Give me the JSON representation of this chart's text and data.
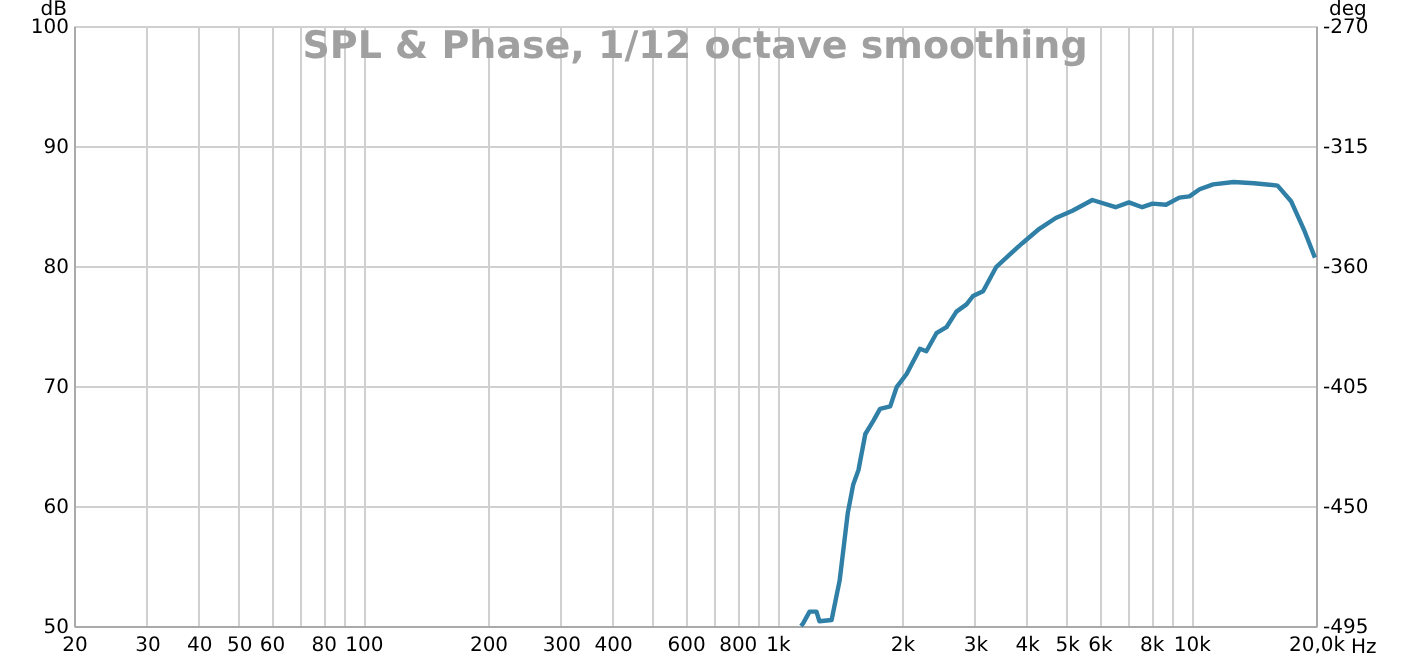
{
  "chart_data": {
    "type": "line",
    "title": "SPL & Phase, 1/12 octave smoothing",
    "xlabel": "Hz",
    "ylabel": "dB",
    "y2label": "deg",
    "log": "x",
    "grid": true,
    "marker": "none",
    "line_style": "solid",
    "xlim": [
      20,
      20000
    ],
    "xticks": [
      20,
      30,
      40,
      50,
      60,
      {
        "value": 70,
        "label": null
      },
      80,
      {
        "value": 90,
        "label": null
      },
      100,
      200,
      300,
      400,
      {
        "value": 500,
        "label": null
      },
      600,
      {
        "value": 700,
        "label": null
      },
      800,
      {
        "value": 900,
        "label": null
      },
      {
        "value": 1000,
        "label": "1k"
      },
      {
        "value": 2000,
        "label": "2k"
      },
      {
        "value": 3000,
        "label": "3k"
      },
      {
        "value": 4000,
        "label": "4k"
      },
      {
        "value": 5000,
        "label": "5k"
      },
      {
        "value": 6000,
        "label": "6k"
      },
      {
        "value": 7000,
        "label": null
      },
      {
        "value": 8000,
        "label": "8k"
      },
      {
        "value": 9000,
        "label": null
      },
      {
        "value": 10000,
        "label": "10k"
      },
      {
        "value": 20000,
        "label": "20,0k"
      }
    ],
    "ylim": [
      50,
      100
    ],
    "yticks": [
      50,
      60,
      70,
      80,
      90,
      100
    ],
    "y2lim": [
      -495,
      -270
    ],
    "y2ticks": [
      -495,
      -450,
      -405,
      -360,
      -315,
      -270
    ],
    "x": [
      1140,
      1153,
      1196,
      1243,
      1263,
      1352,
      1414,
      1479,
      1525,
      1570,
      1631,
      1705,
      1770,
      1873,
      1941,
      2052,
      2209,
      2290,
      2422,
      2561,
      2707,
      2863,
      2969,
      3140,
      3375,
      3627,
      3905,
      4293,
      4703,
      5161,
      5766,
      6560,
      7066,
      7610,
      8058,
      8683,
      9350,
      9893,
      10470,
      11290,
      12650,
      14170,
      16150,
      17410,
      18770,
      19880
    ],
    "series": [
      {
        "color": "#2f7fa6",
        "values": [
          50.0,
          50.2,
          51.2,
          51.2,
          50.4,
          50.5,
          53.8,
          59.4,
          61.8,
          63.0,
          66.0,
          67.1,
          68.1,
          68.3,
          69.9,
          71.0,
          73.1,
          72.9,
          74.4,
          74.9,
          76.2,
          76.8,
          77.5,
          77.9,
          79.9,
          80.9,
          81.9,
          83.1,
          84.0,
          84.6,
          85.5,
          84.9,
          85.3,
          84.9,
          85.2,
          85.1,
          85.7,
          85.8,
          86.4,
          86.8,
          87.0,
          86.9,
          86.7,
          85.4,
          82.9,
          80.7
        ]
      }
    ]
  }
}
